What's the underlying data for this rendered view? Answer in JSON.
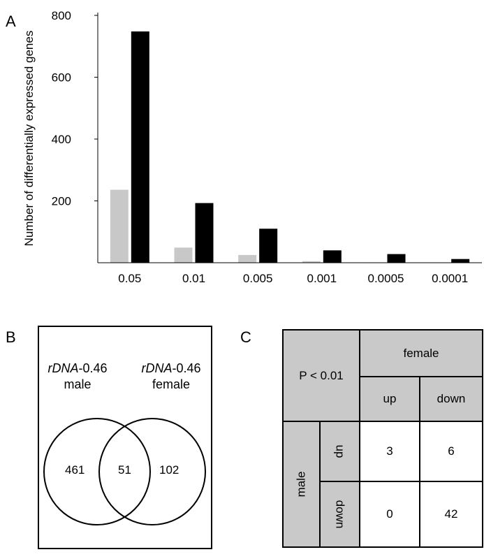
{
  "panels": {
    "a": "A",
    "b": "B",
    "c": "C"
  },
  "chart_data": {
    "type": "bar",
    "categories": [
      "0.05",
      "0.01",
      "0.005",
      "0.001",
      "0.0005",
      "0.0001"
    ],
    "series": [
      {
        "name": "",
        "color": "#c8c8c8",
        "values": [
          236,
          49,
          25,
          5,
          1,
          1
        ]
      },
      {
        "name": "",
        "color": "#000000",
        "values": [
          748,
          193,
          110,
          40,
          28,
          12
        ]
      }
    ],
    "ylabel": "Number of differentially expressed genes",
    "xlabel": "",
    "yticks": [
      200,
      400,
      600,
      800
    ],
    "ylim": [
      0,
      800
    ],
    "grid": false
  },
  "venn": {
    "left_label_italic": "rDNA",
    "left_label_rest": "-0.46",
    "left_label_line2": "male",
    "right_label_italic": "rDNA",
    "right_label_rest": "-0.46",
    "right_label_line2": "female",
    "left_only": "461",
    "overlap": "51",
    "right_only": "102"
  },
  "table": {
    "corner": "P < 0.01",
    "col_group": "female",
    "col_up": "up",
    "col_down": "down",
    "row_group": "male",
    "row_up": "up",
    "row_down": "down",
    "up_up": "3",
    "up_down": "6",
    "down_up": "0",
    "down_down": "42"
  }
}
